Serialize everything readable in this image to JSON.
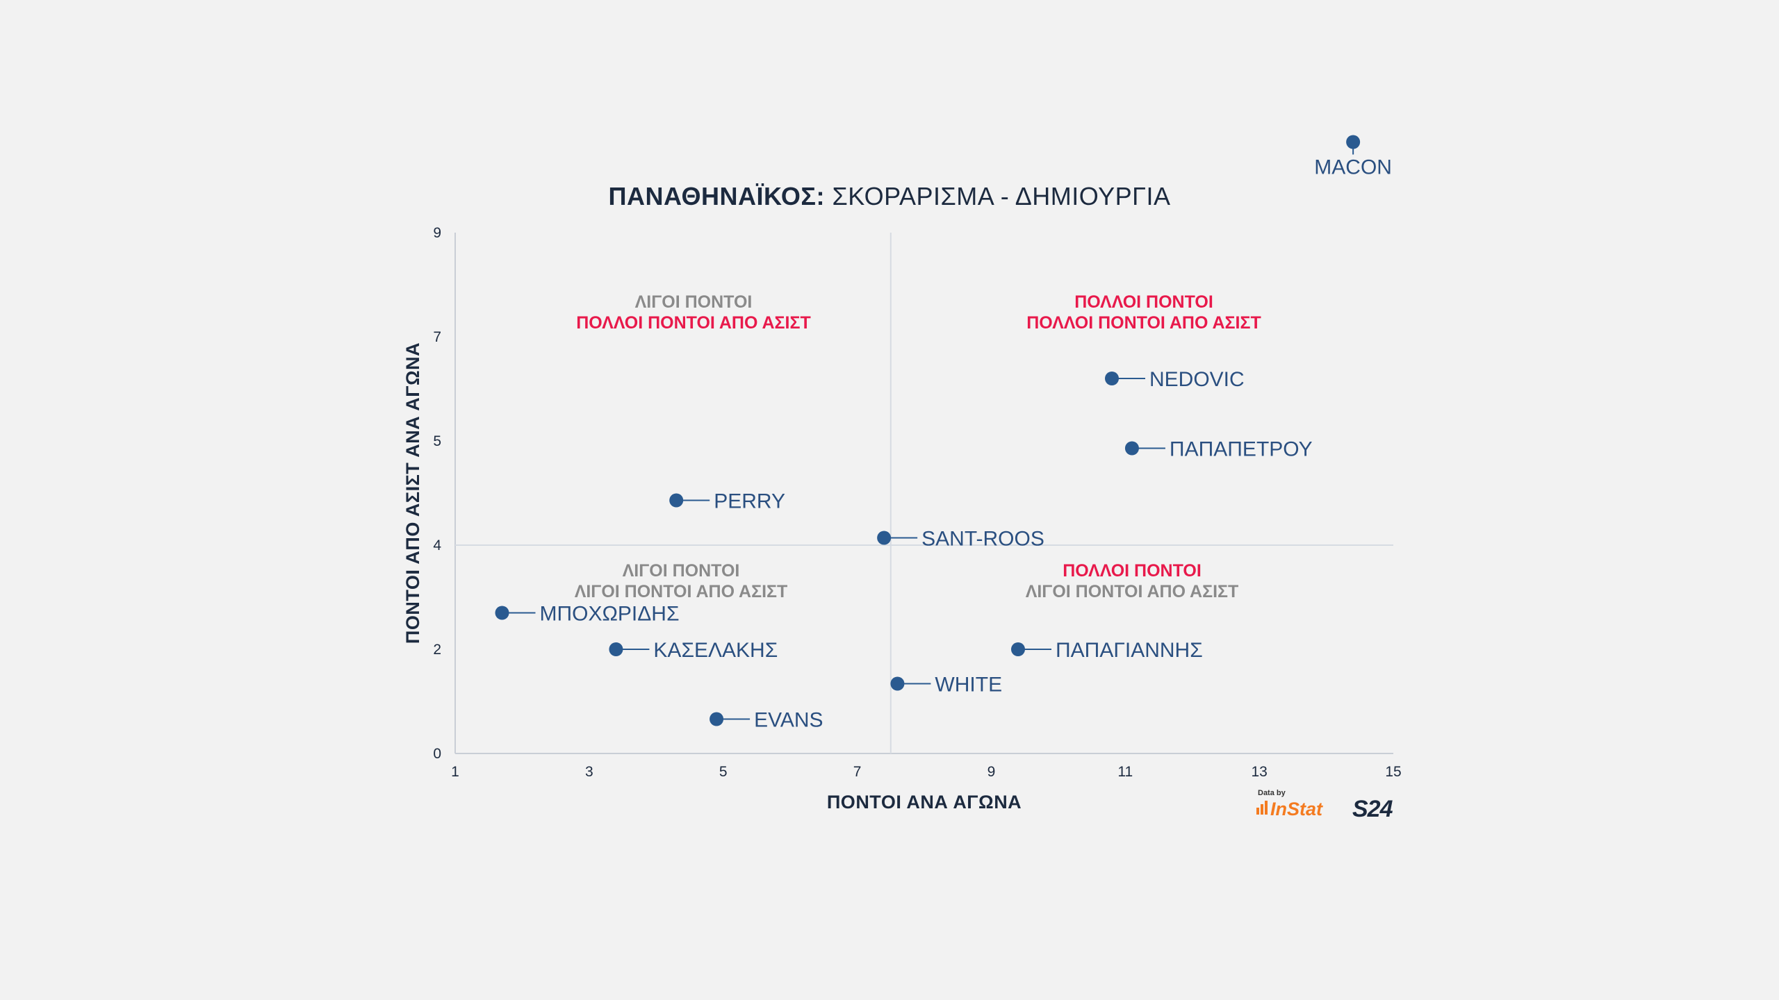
{
  "colors": {
    "point": "#2a5a90",
    "label": "#2a4f80",
    "accent_red": "#e8194b",
    "quadrant_gray": "#8a8a8a",
    "axis": "#c9ced6",
    "title": "#1c2a3f"
  },
  "branding": {
    "data_by": "Data by",
    "instat": "InStat",
    "s24": "S24"
  },
  "chart_data": {
    "type": "scatter",
    "title_bold": "ΠΑΝΑΘΗΝΑΪΚΟΣ:",
    "title_rest": " ΣΚΟΡΑΡΙΣΜΑ - ΔΗΜΙΟΥΡΓΙΑ",
    "xlabel": "ΠΟΝΤΟΙ ΑΝΑ ΑΓΩΝΑ",
    "ylabel": "ΠΟΝΤΟΙ ΑΠΟ ΑΣΙΣΤ ΑΝΑ ΑΓΩΝΑ",
    "xlim": [
      1,
      15
    ],
    "x_ticks": [
      "1",
      "3",
      "5",
      "7",
      "9",
      "11",
      "13",
      "15"
    ],
    "y_ticks": [
      "0",
      "2",
      "4",
      "5",
      "7",
      "9"
    ],
    "quadrant_dividers": {
      "x": 7.5,
      "y": "4"
    },
    "quadrants": {
      "top_left": [
        "ΛΙΓΟΙ ΠΟΝΤΟΙ",
        "ΠΟΛΛΟΙ ΠΟΝΤΟΙ ΑΠΟ ΑΣΙΣΤ"
      ],
      "top_right": [
        "ΠΟΛΛΟΙ ΠΟΝΤΟΙ",
        "ΠΟΛΛΟΙ ΠΟΝΤΟΙ ΑΠΟ ΑΣΙΣΤ"
      ],
      "bottom_left": [
        "ΛΙΓΟΙ ΠΟΝΤΟΙ",
        "ΛΙΓΟΙ ΠΟΝΤΟΙ ΑΠΟ ΑΣΙΣΤ"
      ],
      "bottom_right": [
        "ΠΟΛΛΟΙ ΠΟΝΤΟΙ",
        "ΛΙΓΟΙ ΠΟΝΤΟΙ ΑΠΟ ΑΣΙΣΤ"
      ]
    },
    "points": [
      {
        "name": "MACON",
        "x": 14.4,
        "y_idx": 5.87,
        "label_pos": "below"
      },
      {
        "name": "NEDOVIC",
        "x": 10.8,
        "y_idx": 3.6,
        "label_pos": "right"
      },
      {
        "name": "ΠΑΠΑΠΕΤΡΟΥ",
        "x": 11.1,
        "y_idx": 2.93,
        "label_pos": "right"
      },
      {
        "name": "PERRY",
        "x": 4.3,
        "y_idx": 2.43,
        "label_pos": "right"
      },
      {
        "name": "SANT-ROOS",
        "x": 7.4,
        "y_idx": 2.07,
        "label_pos": "right"
      },
      {
        "name": "ΜΠΟΧΩΡΙΔΗΣ",
        "x": 1.7,
        "y_idx": 1.35,
        "label_pos": "right"
      },
      {
        "name": "ΚΑΣΕΛΑΚΗΣ",
        "x": 3.4,
        "y_idx": 1.0,
        "label_pos": "right"
      },
      {
        "name": "ΠΑΠΑΓΙΑΝΝΗΣ",
        "x": 9.4,
        "y_idx": 1.0,
        "label_pos": "right"
      },
      {
        "name": "WHITE",
        "x": 7.6,
        "y_idx": 0.67,
        "label_pos": "right"
      },
      {
        "name": "EVANS",
        "x": 4.9,
        "y_idx": 0.33,
        "label_pos": "right"
      }
    ]
  }
}
